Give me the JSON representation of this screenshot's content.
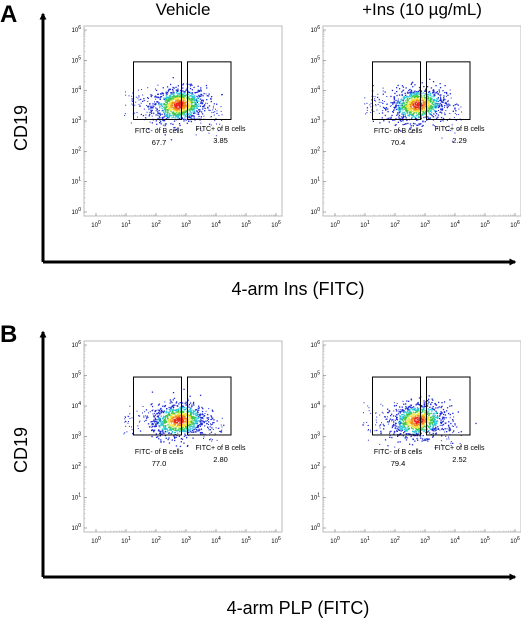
{
  "panels": [
    {
      "letter": "A",
      "y_axis_label": "CD19",
      "x_axis_label": "4-arm Ins (FITC)",
      "plots": [
        {
          "title": "Vehicle",
          "neg_label": "FITC- of B cells",
          "neg_value": "67.7",
          "pos_label": "FITC+ of B cells",
          "pos_value": "3.85"
        },
        {
          "title": "+Ins (10 µg/mL)",
          "neg_label": "FITC- of B cells",
          "neg_value": "70.4",
          "pos_label": "FITC+ of B cells",
          "pos_value": "2.29"
        }
      ]
    },
    {
      "letter": "B",
      "y_axis_label": "CD19",
      "x_axis_label": "4-arm PLP (FITC)",
      "plots": [
        {
          "title": "",
          "neg_label": "FITC- of B cells",
          "neg_value": "77.0",
          "pos_label": "FITC+ of B cells",
          "pos_value": "2.80"
        },
        {
          "title": "",
          "neg_label": "FITC- of B cells",
          "neg_value": "79.4",
          "pos_label": "FITC+ of B cells",
          "pos_value": "2.52"
        }
      ]
    }
  ],
  "tick_exponents": [
    "0",
    "1",
    "2",
    "3",
    "4",
    "5",
    "6"
  ],
  "tick_base": "10"
}
